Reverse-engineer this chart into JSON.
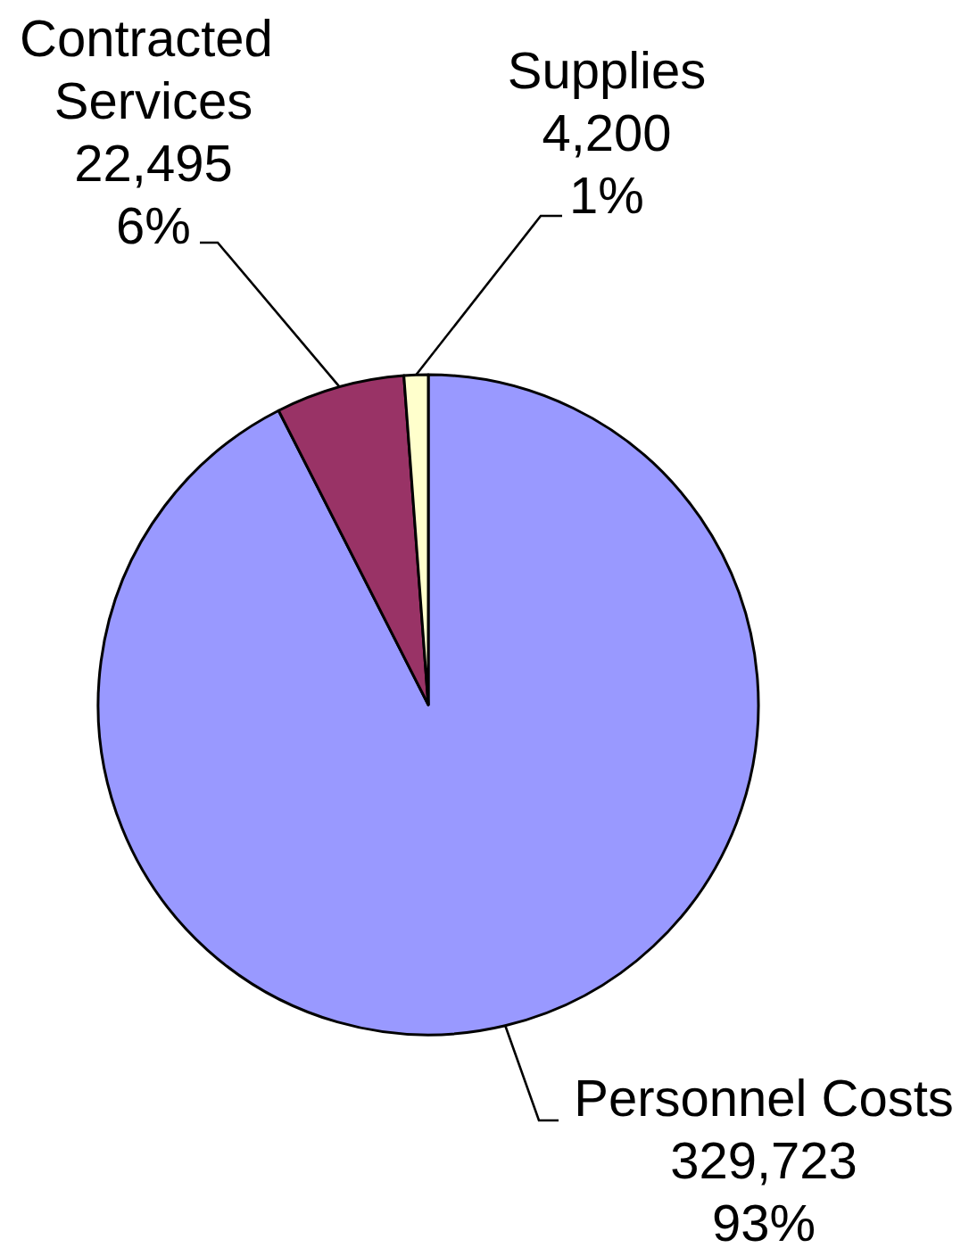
{
  "chart_data": {
    "type": "pie",
    "categories": [
      "Personnel Costs",
      "Contracted Services",
      "Supplies"
    ],
    "values": [
      329723,
      22495,
      4200
    ],
    "colors": [
      "#9999ff",
      "#993366",
      "#ffffcc"
    ],
    "value_labels": [
      "329,723\n93%",
      "22,495\n6%",
      "4,200\n1%"
    ]
  }
}
